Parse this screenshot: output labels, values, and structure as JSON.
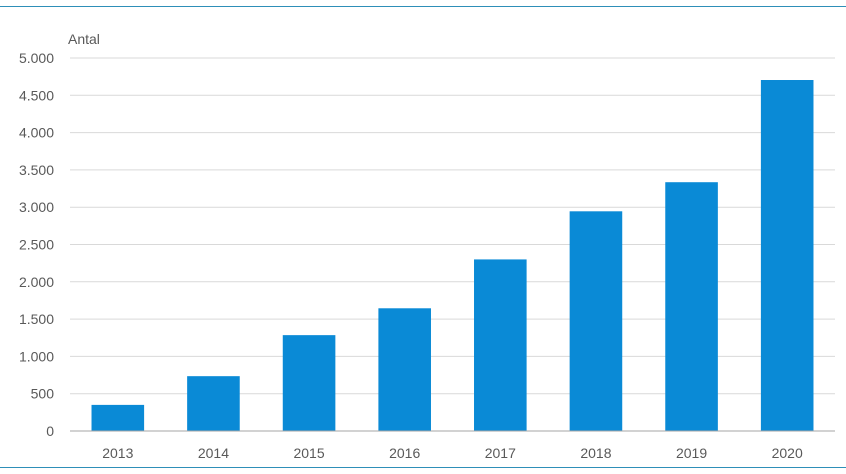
{
  "chart_data": {
    "type": "bar",
    "ylabel": "Antal",
    "categories": [
      "2013",
      "2014",
      "2015",
      "2016",
      "2017",
      "2018",
      "2019",
      "2020"
    ],
    "values": [
      350,
      735,
      1285,
      1645,
      2300,
      2945,
      3335,
      4705
    ],
    "ylim": [
      0,
      5000
    ],
    "yticks": [
      0,
      500,
      1000,
      1500,
      2000,
      2500,
      3000,
      3500,
      4000,
      4500,
      5000
    ],
    "ytick_labels": [
      "0",
      "500",
      "1.000",
      "1.500",
      "2.000",
      "2.500",
      "3.000",
      "3.500",
      "4.000",
      "4.500",
      "5.000"
    ],
    "grid": true,
    "bar_color": "#0a8ad6",
    "grid_color": "#d9d9d9",
    "axis_color": "#a6a6a6"
  }
}
